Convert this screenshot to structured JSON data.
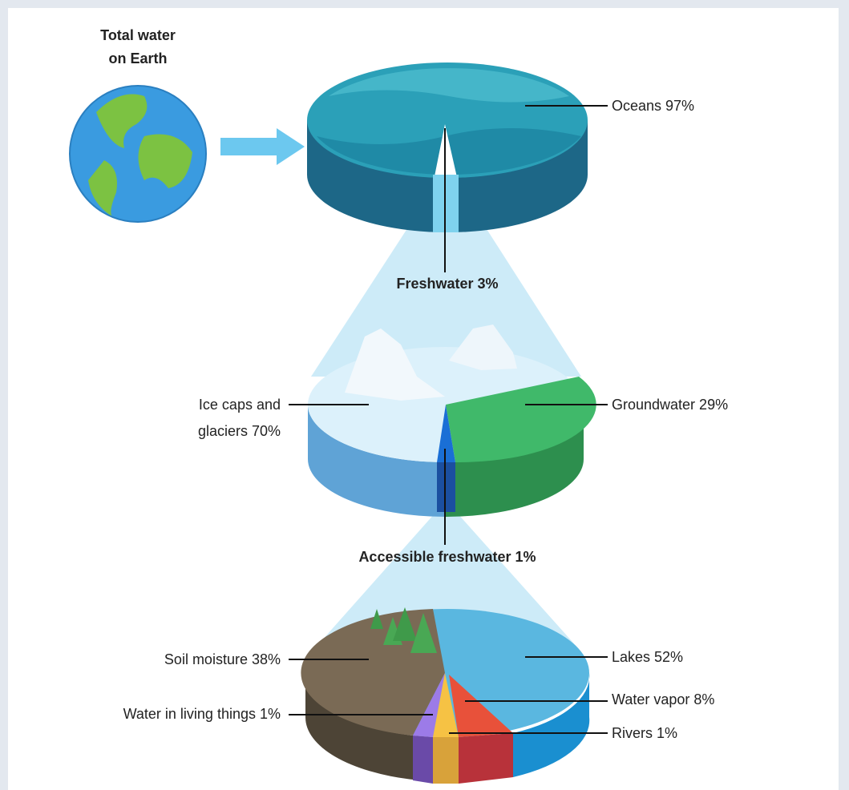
{
  "labels": {
    "total_water": [
      "Total water",
      "on Earth"
    ],
    "oceans": "Oceans 97%",
    "freshwater": "Freshwater 3%",
    "ice_caps": [
      "Ice caps and",
      "glaciers 70%"
    ],
    "groundwater": "Groundwater 29%",
    "accessible": "Accessible freshwater 1%",
    "soil": "Soil moisture 38%",
    "living": "Water in living things 1%",
    "lakes": "Lakes 52%",
    "vapor": "Water vapor 8%",
    "rivers": "Rivers 1%"
  }
}
